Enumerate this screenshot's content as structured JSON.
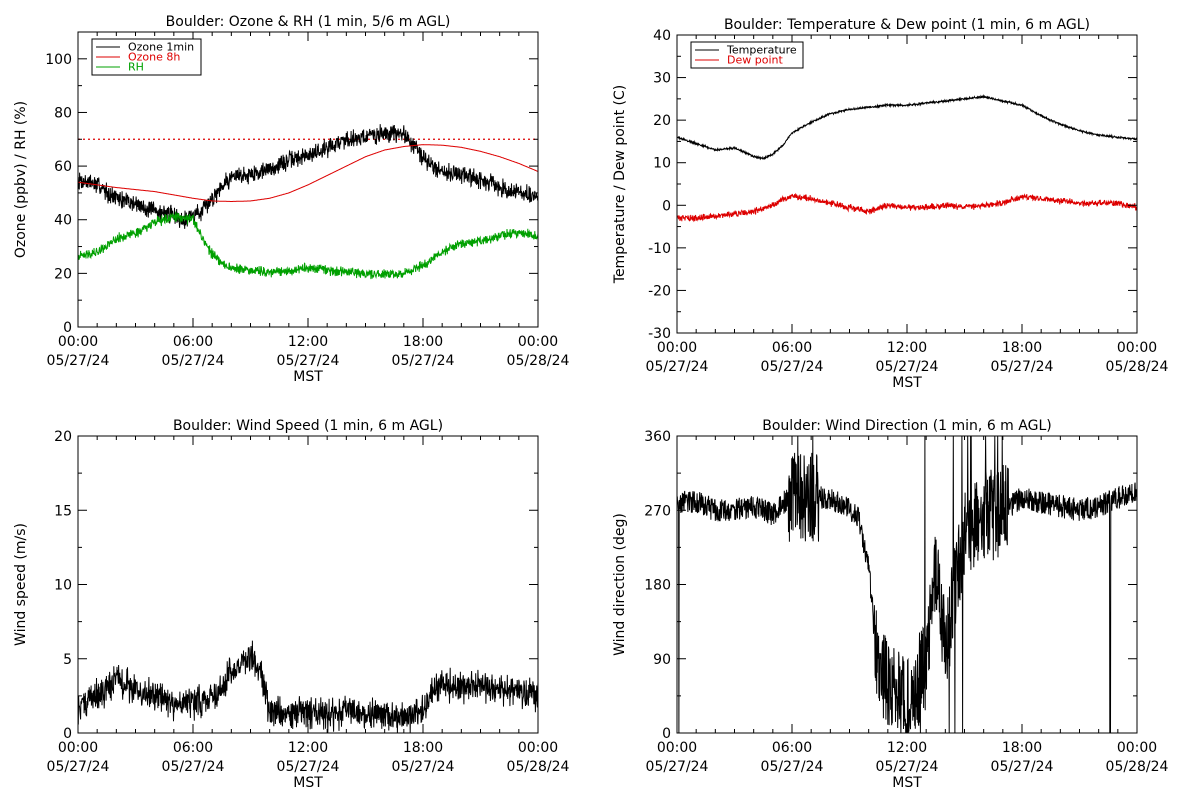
{
  "chart_data": [
    {
      "type": "line",
      "title": "Boulder: Ozone & RH (1 min, 5/6 m AGL)",
      "xlabel": "MST",
      "ylabel": "Ozone (ppbv) / RH (%)",
      "xlim": [
        0,
        24
      ],
      "ylim": [
        0,
        110
      ],
      "xticks": [
        0,
        6,
        12,
        18,
        24
      ],
      "xtick_labels": [
        [
          "00:00",
          "05/27/24"
        ],
        [
          "06:00",
          "05/27/24"
        ],
        [
          "12:00",
          "05/27/24"
        ],
        [
          "18:00",
          "05/27/24"
        ],
        [
          "00:00",
          "05/28/24"
        ]
      ],
      "yticks": [
        0,
        20,
        40,
        60,
        80,
        100
      ],
      "yminor": 10,
      "grid": false,
      "legend_position": "top-left",
      "reference_line": {
        "y": 70,
        "color": "#dd0000",
        "style": "dotted"
      },
      "series": [
        {
          "name": "Ozone 1min",
          "color": "#000000",
          "noise": 2.8,
          "x": [
            0,
            1,
            2,
            3,
            4,
            5,
            5.5,
            6,
            6.5,
            7,
            7.5,
            8,
            9,
            10,
            11,
            12,
            13,
            14,
            15,
            16,
            17,
            17.5,
            18,
            18.5,
            19,
            20,
            21,
            22,
            23,
            24
          ],
          "y": [
            55,
            53,
            48,
            46,
            43,
            42,
            40,
            42,
            43,
            48,
            53,
            56,
            57,
            59,
            62,
            64,
            67,
            70,
            71,
            72,
            72,
            68,
            63,
            60,
            58,
            57,
            55,
            52,
            50,
            48
          ]
        },
        {
          "name": "Ozone 8h",
          "color": "#dd0000",
          "noise": 0,
          "x": [
            0,
            2,
            4,
            6,
            7,
            8,
            9,
            10,
            11,
            12,
            13,
            14,
            15,
            16,
            17,
            18,
            19,
            20,
            21,
            22,
            23,
            24
          ],
          "y": [
            54,
            52,
            50.5,
            48,
            47,
            46.8,
            47,
            48,
            50,
            53,
            56.5,
            60,
            63.5,
            66,
            67.3,
            68,
            67.8,
            67,
            65.5,
            63.5,
            61,
            58
          ]
        },
        {
          "name": "RH",
          "color": "#00a000",
          "noise": 1.5,
          "x": [
            0,
            1,
            2,
            3,
            4,
            5,
            6,
            6.5,
            7,
            7.5,
            8,
            9,
            10,
            11,
            12,
            13,
            14,
            15,
            16,
            17,
            18,
            19,
            20,
            21,
            22,
            23,
            24
          ],
          "y": [
            26,
            28,
            33,
            35,
            39,
            41,
            40,
            33,
            27,
            24,
            22,
            21,
            20.5,
            21,
            22,
            21,
            20.5,
            20,
            19.5,
            20,
            23,
            28,
            31,
            32,
            34,
            35,
            34
          ]
        }
      ]
    },
    {
      "type": "line",
      "title": "Boulder: Temperature & Dew point (1 min, 6 m AGL)",
      "xlabel": "MST",
      "ylabel": "Temperature / Dew point (C)",
      "xlim": [
        0,
        24
      ],
      "ylim": [
        -30,
        40
      ],
      "xticks": [
        0,
        6,
        12,
        18,
        24
      ],
      "xtick_labels": [
        [
          "00:00",
          "05/27/24"
        ],
        [
          "06:00",
          "05/27/24"
        ],
        [
          "12:00",
          "05/27/24"
        ],
        [
          "18:00",
          "05/27/24"
        ],
        [
          "00:00",
          "05/28/24"
        ]
      ],
      "yticks": [
        -30,
        -20,
        -10,
        0,
        10,
        20,
        30,
        40
      ],
      "yminor": 5,
      "grid": false,
      "legend_position": "top-left",
      "series": [
        {
          "name": "Temperature",
          "color": "#000000",
          "noise": 0.2,
          "x": [
            0,
            1,
            2,
            3,
            4,
            4.5,
            5,
            5.5,
            6,
            7,
            8,
            9,
            10,
            11,
            12,
            13,
            14,
            15,
            16,
            17,
            18,
            19,
            20,
            21,
            22,
            23,
            24
          ],
          "y": [
            16,
            14.5,
            13,
            13.5,
            11.5,
            11,
            12,
            14,
            17,
            19.5,
            21.5,
            22.5,
            23,
            23.5,
            23.5,
            24,
            24.5,
            25,
            25.5,
            24.5,
            23.5,
            21,
            19,
            17.5,
            16.5,
            16,
            15.5
          ]
        },
        {
          "name": "Dew point",
          "color": "#dd0000",
          "noise": 0.6,
          "x": [
            0,
            1,
            2,
            3,
            4,
            5,
            5.5,
            6,
            6.5,
            7,
            8,
            9,
            10,
            11,
            12,
            13,
            14,
            15,
            16,
            17,
            18,
            19,
            20,
            21,
            22,
            23,
            24
          ],
          "y": [
            -3,
            -3,
            -2.5,
            -2,
            -1.5,
            0,
            1.5,
            2,
            2,
            1.5,
            0.5,
            -0.5,
            -1.5,
            0,
            -0.5,
            -0.5,
            0,
            -0.5,
            0,
            0.5,
            2,
            1.5,
            1,
            0.5,
            0.5,
            0.5,
            -0.5
          ]
        }
      ]
    },
    {
      "type": "line",
      "title": "Boulder: Wind Speed (1 min, 6 m AGL)",
      "xlabel": "MST",
      "ylabel": "Wind speed (m/s)",
      "xlim": [
        0,
        24
      ],
      "ylim": [
        0,
        20
      ],
      "xticks": [
        0,
        6,
        12,
        18,
        24
      ],
      "xtick_labels": [
        [
          "00:00",
          "05/27/24"
        ],
        [
          "06:00",
          "05/27/24"
        ],
        [
          "12:00",
          "05/27/24"
        ],
        [
          "18:00",
          "05/27/24"
        ],
        [
          "00:00",
          "05/28/24"
        ]
      ],
      "yticks": [
        0,
        5,
        10,
        15,
        20
      ],
      "yminor": 2.5,
      "grid": false,
      "series": [
        {
          "name": "",
          "color": "#000000",
          "noise": 0.9,
          "floor": 0,
          "x": [
            0,
            1,
            2,
            3,
            4,
            5,
            6,
            7,
            7.5,
            8,
            8.5,
            9,
            9.5,
            10,
            11,
            12,
            13,
            14,
            15,
            16,
            17,
            18,
            18.5,
            19,
            20,
            21,
            22,
            23,
            24
          ],
          "y": [
            1.8,
            2.5,
            3.5,
            3,
            2.5,
            2,
            2,
            2.5,
            3,
            4,
            4.8,
            5.2,
            4,
            1.5,
            1.3,
            1.5,
            1.2,
            1.6,
            1.4,
            1.2,
            1,
            1.5,
            3,
            3.3,
            3.2,
            3.1,
            3,
            2.9,
            2.5
          ]
        }
      ]
    },
    {
      "type": "line",
      "title": "Boulder: Wind Direction (1 min, 6 m AGL)",
      "xlabel": "MST",
      "ylabel": "Wind direction (deg)",
      "xlim": [
        0,
        24
      ],
      "ylim": [
        0,
        360
      ],
      "xticks": [
        0,
        6,
        12,
        18,
        24
      ],
      "xtick_labels": [
        [
          "00:00",
          "05/27/24"
        ],
        [
          "06:00",
          "05/27/24"
        ],
        [
          "12:00",
          "05/27/24"
        ],
        [
          "18:00",
          "05/27/24"
        ],
        [
          "00:00",
          "05/28/24"
        ]
      ],
      "yticks": [
        0,
        90,
        180,
        270,
        360
      ],
      "yminor": 45,
      "grid": false,
      "series": [
        {
          "name": "",
          "color": "#000000",
          "noise": 14,
          "wrap": true,
          "x": [
            0,
            1,
            2,
            3,
            4,
            5,
            6,
            7,
            8,
            9,
            9.5,
            10,
            10.5,
            11,
            12,
            13,
            13.5,
            14,
            15,
            16,
            17,
            18,
            19,
            20,
            21,
            22,
            23,
            24
          ],
          "y": [
            280,
            280,
            270,
            270,
            275,
            265,
            290,
            285,
            285,
            270,
            260,
            200,
            80,
            60,
            40,
            80,
            200,
            100,
            250,
            260,
            270,
            285,
            280,
            275,
            270,
            275,
            285,
            290
          ]
        }
      ]
    }
  ]
}
